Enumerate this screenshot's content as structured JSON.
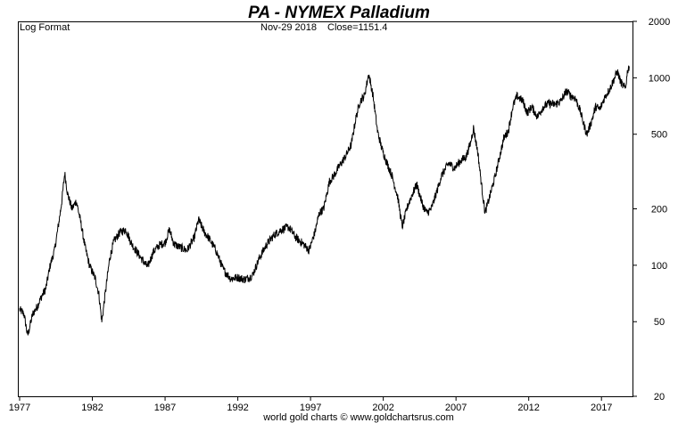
{
  "chart_data": {
    "type": "line",
    "title": "PA  -  NYMEX Palladium",
    "scale_label": "Log Format",
    "last_date": "Nov-29  2018",
    "close_label": "Close=1151.4",
    "credit": "world gold charts © www.goldchartsrus.com",
    "y_scale": "log",
    "ylim": [
      20,
      2000
    ],
    "xlim": [
      1977.0,
      2018.95
    ],
    "y_ticks": [
      {
        "value": 2000,
        "label": "2000"
      },
      {
        "value": 1000,
        "label": "1000"
      },
      {
        "value": 500,
        "label": "500"
      },
      {
        "value": 200,
        "label": "200"
      },
      {
        "value": 100,
        "label": "100"
      },
      {
        "value": 50,
        "label": "50"
      },
      {
        "value": 20,
        "label": "20"
      }
    ],
    "x_ticks": [
      {
        "value": 1977,
        "label": "1977"
      },
      {
        "value": 1982,
        "label": "1982"
      },
      {
        "value": 1987,
        "label": "1987"
      },
      {
        "value": 1992,
        "label": "1992"
      },
      {
        "value": 1997,
        "label": "1997"
      },
      {
        "value": 2002,
        "label": "2002"
      },
      {
        "value": 2007,
        "label": "2007"
      },
      {
        "value": 2012,
        "label": "2012"
      },
      {
        "value": 2017,
        "label": "2017"
      }
    ],
    "grid": false,
    "series": [
      {
        "color": "#000000",
        "points": [
          [
            1977.0,
            58
          ],
          [
            1977.3,
            55
          ],
          [
            1977.55,
            42
          ],
          [
            1977.9,
            55
          ],
          [
            1978.2,
            60
          ],
          [
            1978.5,
            68
          ],
          [
            1978.8,
            75
          ],
          [
            1979.1,
            100
          ],
          [
            1979.4,
            120
          ],
          [
            1979.7,
            170
          ],
          [
            1979.9,
            220
          ],
          [
            1980.1,
            310
          ],
          [
            1980.3,
            240
          ],
          [
            1980.6,
            200
          ],
          [
            1980.9,
            220
          ],
          [
            1981.2,
            170
          ],
          [
            1981.5,
            125
          ],
          [
            1981.8,
            100
          ],
          [
            1982.2,
            85
          ],
          [
            1982.45,
            70
          ],
          [
            1982.65,
            50
          ],
          [
            1982.9,
            72
          ],
          [
            1983.2,
            110
          ],
          [
            1983.5,
            135
          ],
          [
            1983.9,
            150
          ],
          [
            1984.3,
            155
          ],
          [
            1984.7,
            130
          ],
          [
            1985.0,
            120
          ],
          [
            1985.5,
            105
          ],
          [
            1985.8,
            98
          ],
          [
            1986.2,
            118
          ],
          [
            1986.6,
            128
          ],
          [
            1987.0,
            132
          ],
          [
            1987.3,
            155
          ],
          [
            1987.6,
            130
          ],
          [
            1988.0,
            125
          ],
          [
            1988.5,
            120
          ],
          [
            1989.0,
            140
          ],
          [
            1989.3,
            175
          ],
          [
            1989.7,
            150
          ],
          [
            1990.0,
            140
          ],
          [
            1990.5,
            120
          ],
          [
            1991.0,
            95
          ],
          [
            1991.5,
            85
          ],
          [
            1992.0,
            86
          ],
          [
            1992.5,
            84
          ],
          [
            1993.0,
            88
          ],
          [
            1993.5,
            110
          ],
          [
            1994.0,
            130
          ],
          [
            1994.5,
            145
          ],
          [
            1995.0,
            155
          ],
          [
            1995.5,
            160
          ],
          [
            1996.0,
            140
          ],
          [
            1996.5,
            130
          ],
          [
            1996.9,
            120
          ],
          [
            1997.3,
            150
          ],
          [
            1997.6,
            190
          ],
          [
            1997.9,
            200
          ],
          [
            1998.3,
            280
          ],
          [
            1998.6,
            300
          ],
          [
            1999.0,
            340
          ],
          [
            1999.4,
            380
          ],
          [
            1999.8,
            440
          ],
          [
            2000.1,
            600
          ],
          [
            2000.4,
            750
          ],
          [
            2000.7,
            800
          ],
          [
            2001.0,
            1050
          ],
          [
            2001.3,
            800
          ],
          [
            2001.6,
            520
          ],
          [
            2001.9,
            420
          ],
          [
            2002.2,
            360
          ],
          [
            2002.6,
            300
          ],
          [
            2003.0,
            230
          ],
          [
            2003.3,
            160
          ],
          [
            2003.7,
            210
          ],
          [
            2004.0,
            240
          ],
          [
            2004.3,
            270
          ],
          [
            2004.7,
            210
          ],
          [
            2005.0,
            190
          ],
          [
            2005.3,
            200
          ],
          [
            2005.7,
            250
          ],
          [
            2006.0,
            300
          ],
          [
            2006.5,
            350
          ],
          [
            2006.9,
            330
          ],
          [
            2007.3,
            360
          ],
          [
            2007.7,
            380
          ],
          [
            2008.0,
            450
          ],
          [
            2008.2,
            540
          ],
          [
            2008.5,
            400
          ],
          [
            2008.8,
            250
          ],
          [
            2009.0,
            190
          ],
          [
            2009.3,
            230
          ],
          [
            2009.7,
            300
          ],
          [
            2010.0,
            380
          ],
          [
            2010.3,
            480
          ],
          [
            2010.6,
            520
          ],
          [
            2010.9,
            700
          ],
          [
            2011.2,
            800
          ],
          [
            2011.6,
            750
          ],
          [
            2011.9,
            650
          ],
          [
            2012.2,
            700
          ],
          [
            2012.6,
            620
          ],
          [
            2013.0,
            700
          ],
          [
            2013.4,
            730
          ],
          [
            2013.8,
            720
          ],
          [
            2014.2,
            750
          ],
          [
            2014.6,
            850
          ],
          [
            2014.9,
            800
          ],
          [
            2015.2,
            780
          ],
          [
            2015.5,
            680
          ],
          [
            2015.8,
            560
          ],
          [
            2016.0,
            500
          ],
          [
            2016.3,
            580
          ],
          [
            2016.6,
            700
          ],
          [
            2016.9,
            680
          ],
          [
            2017.2,
            780
          ],
          [
            2017.6,
            880
          ],
          [
            2017.9,
            1000
          ],
          [
            2018.1,
            1080
          ],
          [
            2018.3,
            960
          ],
          [
            2018.5,
            900
          ],
          [
            2018.65,
            880
          ],
          [
            2018.8,
            1100
          ],
          [
            2018.91,
            1151.4
          ]
        ]
      }
    ]
  }
}
